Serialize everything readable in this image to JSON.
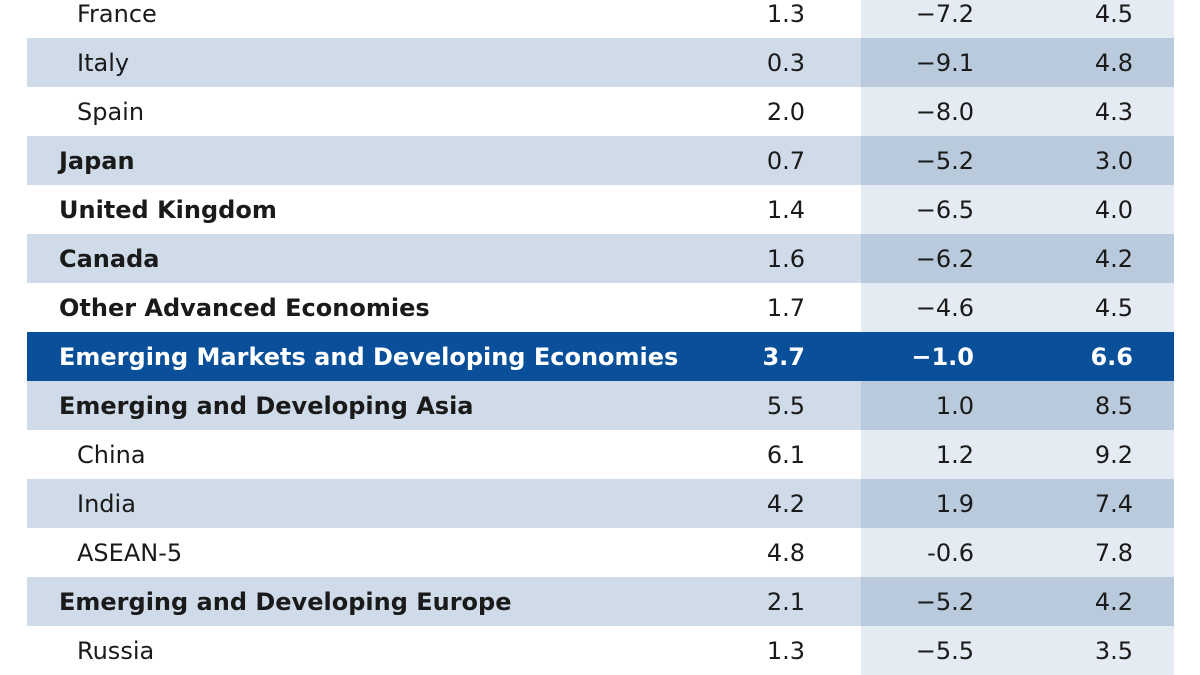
{
  "chart_data": {
    "type": "table",
    "rows": [
      {
        "label": "France",
        "level": 1,
        "band": false,
        "highlight": false,
        "values": [
          "1.3",
          "−7.2",
          "4.5"
        ]
      },
      {
        "label": "Italy",
        "level": 1,
        "band": true,
        "highlight": false,
        "values": [
          "0.3",
          "−9.1",
          "4.8"
        ]
      },
      {
        "label": "Spain",
        "level": 1,
        "band": false,
        "highlight": false,
        "values": [
          "2.0",
          "−8.0",
          "4.3"
        ]
      },
      {
        "label": "Japan",
        "level": 0,
        "band": true,
        "highlight": false,
        "values": [
          "0.7",
          "−5.2",
          "3.0"
        ]
      },
      {
        "label": "United Kingdom",
        "level": 0,
        "band": false,
        "highlight": false,
        "values": [
          "1.4",
          "−6.5",
          "4.0"
        ]
      },
      {
        "label": "Canada",
        "level": 0,
        "band": true,
        "highlight": false,
        "values": [
          "1.6",
          "−6.2",
          "4.2"
        ]
      },
      {
        "label": "Other Advanced Economies",
        "level": 0,
        "band": false,
        "highlight": false,
        "values": [
          "1.7",
          "−4.6",
          "4.5"
        ]
      },
      {
        "label": "Emerging Markets and Developing Economies",
        "level": 0,
        "band": false,
        "highlight": true,
        "values": [
          "3.7",
          "−1.0",
          "6.6"
        ]
      },
      {
        "label": "Emerging and Developing Asia",
        "level": 0,
        "band": true,
        "highlight": false,
        "values": [
          "5.5",
          "1.0",
          "8.5"
        ]
      },
      {
        "label": "China",
        "level": 1,
        "band": false,
        "highlight": false,
        "values": [
          "6.1",
          "1.2",
          "9.2"
        ]
      },
      {
        "label": "India",
        "level": 1,
        "band": true,
        "highlight": false,
        "values": [
          "4.2",
          "1.9",
          "7.4"
        ]
      },
      {
        "label": "ASEAN-5",
        "level": 1,
        "band": false,
        "highlight": false,
        "values": [
          "4.8",
          "-0.6",
          "7.8"
        ]
      },
      {
        "label": "Emerging and Developing Europe",
        "level": 0,
        "band": true,
        "highlight": false,
        "values": [
          "2.1",
          "−5.2",
          "4.2"
        ]
      },
      {
        "label": "Russia",
        "level": 1,
        "band": false,
        "highlight": false,
        "values": [
          "1.3",
          "−5.5",
          "3.5"
        ]
      }
    ]
  },
  "colors": {
    "band": "#cfdbe8",
    "band_col3": "#b9cadd",
    "plain_col3": "#e4ebf3",
    "highlight": "#0a4f9a"
  }
}
